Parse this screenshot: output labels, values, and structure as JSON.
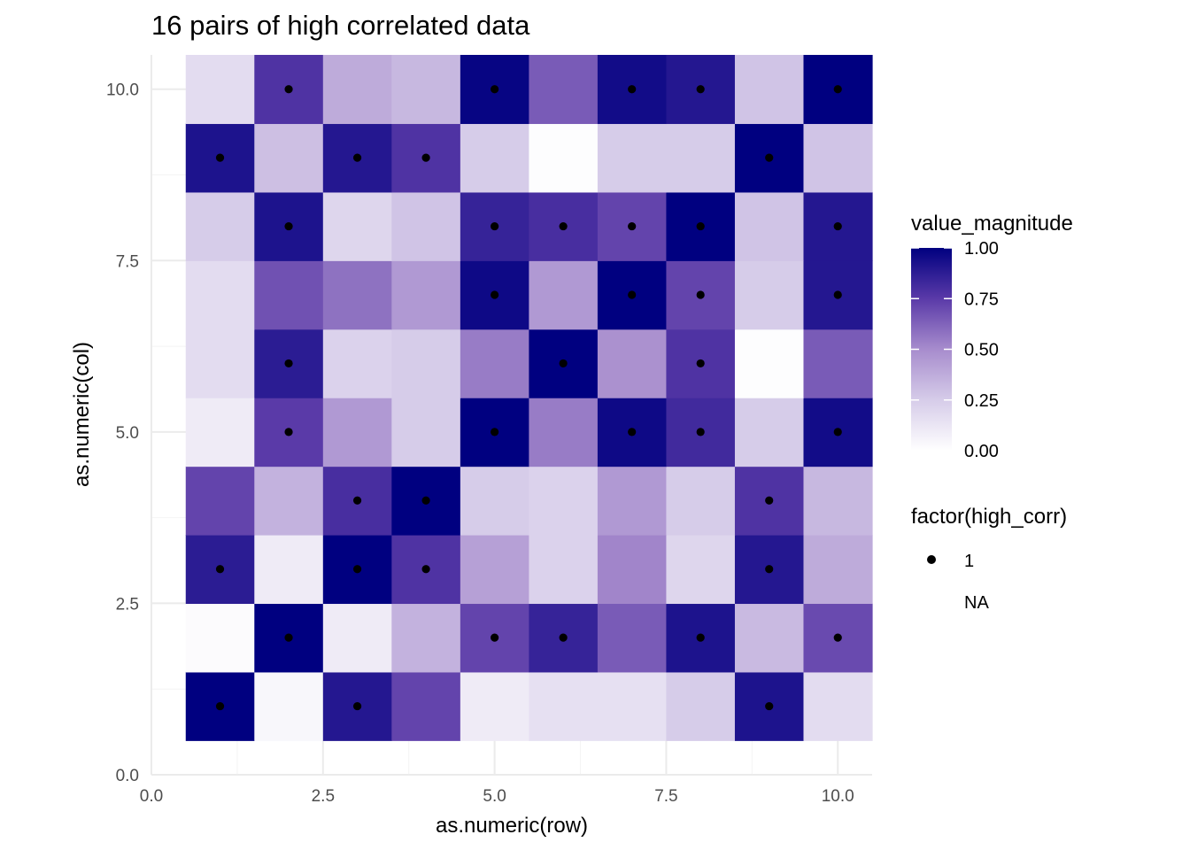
{
  "chart_data": {
    "type": "heatmap",
    "title": "16 pairs of high correlated data",
    "xlabel": "as.numeric(row)",
    "ylabel": "as.numeric(col)",
    "xlim": [
      0,
      10.5
    ],
    "ylim": [
      0,
      10.5
    ],
    "x_ticks": [
      0,
      2.5,
      5,
      7.5,
      10
    ],
    "x_tick_labels": [
      "0.0",
      "2.5",
      "5.0",
      "7.5",
      "10.0"
    ],
    "y_ticks": [
      0,
      2.5,
      5,
      7.5,
      10
    ],
    "y_tick_labels": [
      "0.0",
      "2.5",
      "5.0",
      "7.5",
      "10.0"
    ],
    "grid": true,
    "rows_note": "values[col-1][row-1] is the fill magnitude of the tile at x=row, y=col",
    "values": [
      [
        1.0,
        0.04,
        0.9,
        0.72,
        0.1,
        0.15,
        0.15,
        0.25,
        0.92,
        0.17
      ],
      [
        0.02,
        1.0,
        0.1,
        0.35,
        0.72,
        0.85,
        0.65,
        0.92,
        0.32,
        0.7
      ],
      [
        0.88,
        0.1,
        1.0,
        0.78,
        0.42,
        0.22,
        0.52,
        0.2,
        0.9,
        0.38
      ],
      [
        0.72,
        0.35,
        0.8,
        1.0,
        0.25,
        0.22,
        0.45,
        0.25,
        0.78,
        0.33
      ],
      [
        0.1,
        0.75,
        0.45,
        0.25,
        1.0,
        0.55,
        0.96,
        0.82,
        0.25,
        0.95
      ],
      [
        0.17,
        0.88,
        0.22,
        0.25,
        0.55,
        1.0,
        0.48,
        0.78,
        0.01,
        0.65
      ],
      [
        0.17,
        0.68,
        0.58,
        0.45,
        0.96,
        0.45,
        1.0,
        0.72,
        0.25,
        0.9
      ],
      [
        0.25,
        0.92,
        0.2,
        0.28,
        0.85,
        0.8,
        0.72,
        1.0,
        0.28,
        0.9
      ],
      [
        0.92,
        0.3,
        0.9,
        0.78,
        0.25,
        0.01,
        0.25,
        0.25,
        1.0,
        0.28
      ],
      [
        0.17,
        0.78,
        0.38,
        0.33,
        0.98,
        0.65,
        0.95,
        0.9,
        0.28,
        1.0
      ]
    ],
    "high_corr_points": [
      [
        1,
        1
      ],
      [
        3,
        1
      ],
      [
        9,
        1
      ],
      [
        2,
        2
      ],
      [
        5,
        2
      ],
      [
        6,
        2
      ],
      [
        8,
        2
      ],
      [
        10,
        2
      ],
      [
        1,
        3
      ],
      [
        3,
        3
      ],
      [
        4,
        3
      ],
      [
        9,
        3
      ],
      [
        3,
        4
      ],
      [
        4,
        4
      ],
      [
        9,
        4
      ],
      [
        2,
        5
      ],
      [
        5,
        5
      ],
      [
        7,
        5
      ],
      [
        8,
        5
      ],
      [
        10,
        5
      ],
      [
        2,
        6
      ],
      [
        6,
        6
      ],
      [
        8,
        6
      ],
      [
        5,
        7
      ],
      [
        7,
        7
      ],
      [
        8,
        7
      ],
      [
        10,
        7
      ],
      [
        2,
        8
      ],
      [
        5,
        8
      ],
      [
        6,
        8
      ],
      [
        7,
        8
      ],
      [
        8,
        8
      ],
      [
        10,
        8
      ],
      [
        1,
        9
      ],
      [
        3,
        9
      ],
      [
        4,
        9
      ],
      [
        9,
        9
      ],
      [
        2,
        10
      ],
      [
        5,
        10
      ],
      [
        7,
        10
      ],
      [
        8,
        10
      ],
      [
        10,
        10
      ]
    ],
    "legend": {
      "placement": "right",
      "fill_title": "value_magnitude",
      "fill_ticks": [
        0,
        0.25,
        0.5,
        0.75,
        1
      ],
      "fill_tick_labels": [
        "0.00",
        "0.25",
        "0.50",
        "0.75",
        "1.00"
      ],
      "color_low": "#ffffff",
      "color_high": "#000080",
      "shape_title": "factor(high_corr)",
      "shape_entries": [
        "1",
        "NA"
      ]
    }
  }
}
